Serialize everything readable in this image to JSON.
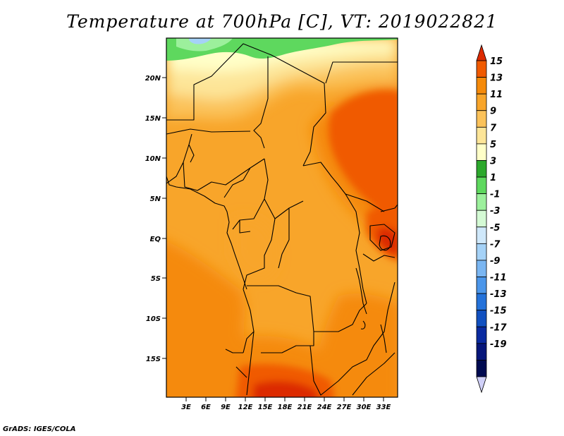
{
  "title": "Temperature at 700hPa [C], VT: 2019022821",
  "credit": "GrADS: IGES/COLA",
  "map": {
    "lat_labels": [
      "20N",
      "15N",
      "10N",
      "5N",
      "EQ",
      "5S",
      "10S",
      "15S"
    ],
    "lon_labels": [
      "3E",
      "6E",
      "9E",
      "12E",
      "15E",
      "18E",
      "21E",
      "24E",
      "27E",
      "30E",
      "33E"
    ]
  },
  "colorbar": {
    "labels": [
      "15",
      "13",
      "11",
      "9",
      "7",
      "5",
      "3",
      "1",
      "-1",
      "-3",
      "-5",
      "-7",
      "-9",
      "-11",
      "-13",
      "-15",
      "-17",
      "-19"
    ],
    "colors": [
      "#dc2a00",
      "#f05a00",
      "#f58a0a",
      "#f8a52a",
      "#fbc25a",
      "#fde598",
      "#ffffc8",
      "#2ca82c",
      "#5ed85e",
      "#9cf09c",
      "#d4fad4",
      "#cfe8fa",
      "#a5d2f7",
      "#7ab6f2",
      "#4b96ea",
      "#2472da",
      "#1150c0",
      "#0a2aa0",
      "#06167a",
      "#000a50",
      "#d0d0f8"
    ]
  }
}
